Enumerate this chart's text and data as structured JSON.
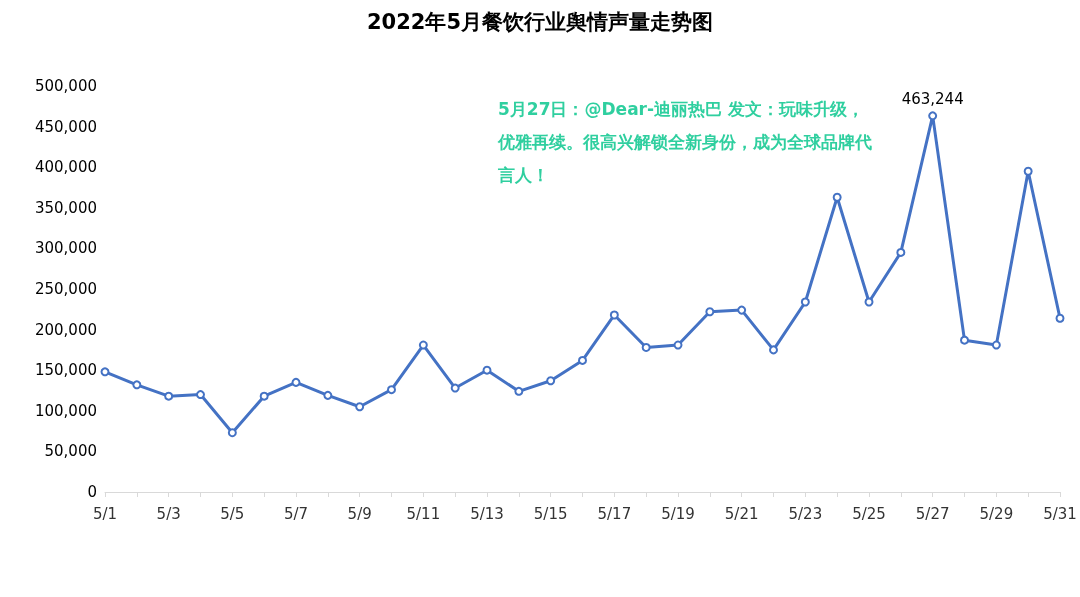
{
  "chart_data": {
    "type": "line",
    "title": "2022年5月餐饮行业舆情声量走势图",
    "categories": [
      "5/1",
      null,
      "5/3",
      null,
      "5/5",
      null,
      "5/7",
      null,
      "5/9",
      null,
      "5/11",
      null,
      "5/13",
      null,
      "5/15",
      null,
      "5/17",
      null,
      "5/19",
      null,
      "5/21",
      null,
      "5/23",
      null,
      "5/25",
      null,
      "5/27",
      null,
      "5/29",
      null,
      "5/31"
    ],
    "series": [
      {
        "color": "#4472c4",
        "values": [
          148000,
          132000,
          118000,
          120000,
          73000,
          118000,
          135000,
          119000,
          105000,
          126000,
          181000,
          128000,
          150000,
          124000,
          137000,
          162000,
          218000,
          178000,
          181000,
          222000,
          224000,
          175000,
          234000,
          363000,
          234000,
          295000,
          463244,
          187000,
          181000,
          395000,
          214000
        ],
        "value_labels": [
          null,
          null,
          null,
          null,
          null,
          null,
          null,
          null,
          null,
          null,
          null,
          null,
          null,
          null,
          null,
          null,
          null,
          null,
          null,
          null,
          null,
          null,
          null,
          null,
          null,
          null,
          "463,244",
          null,
          null,
          null,
          null
        ]
      }
    ],
    "ylim": [
      0,
      500000
    ],
    "yticks": [
      {
        "value": 0,
        "label": "0"
      },
      {
        "value": 50000,
        "label": "50,000"
      },
      {
        "value": 100000,
        "label": "100,000"
      },
      {
        "value": 150000,
        "label": "150,000"
      },
      {
        "value": 200000,
        "label": "200,000"
      },
      {
        "value": 250000,
        "label": "250,000"
      },
      {
        "value": 300000,
        "label": "300,000"
      },
      {
        "value": 350000,
        "label": "350,000"
      },
      {
        "value": 400000,
        "label": "400,000"
      },
      {
        "value": 450000,
        "label": "450,000"
      },
      {
        "value": 500000,
        "label": "500,000"
      }
    ],
    "annotations": [
      "5月27日：@Dear-迪丽热巴 发文：玩味升级，优雅再续。很高兴解锁全新身份，成为全球品牌代言人！"
    ],
    "grid": false,
    "marker": "circle",
    "line_style": "solid"
  }
}
